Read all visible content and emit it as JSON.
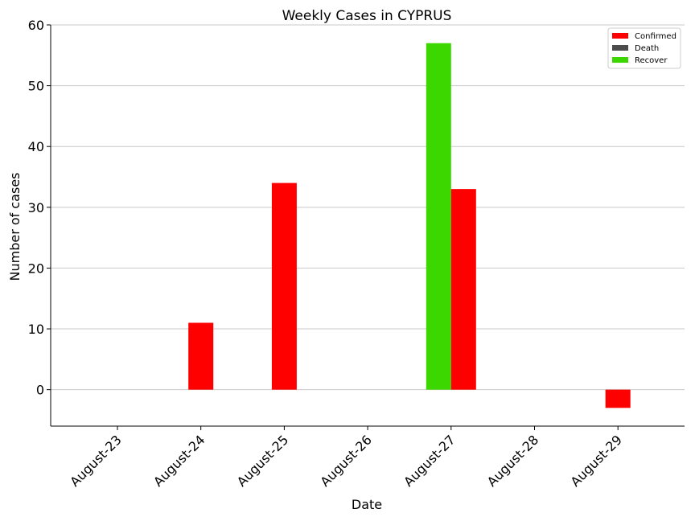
{
  "chart_data": {
    "type": "bar",
    "title": "Weekly Cases in CYPRUS",
    "xlabel": "Date",
    "ylabel": "Number of cases",
    "ylim": [
      -6,
      60
    ],
    "yticks": [
      0,
      10,
      20,
      30,
      40,
      50,
      60
    ],
    "categories": [
      "August-23",
      "August-24",
      "August-25",
      "August-26",
      "August-27",
      "August-28",
      "August-29"
    ],
    "series": [
      {
        "name": "Confirmed",
        "color": "#ff0000",
        "values": [
          0,
          11,
          34,
          0,
          33,
          0,
          -3
        ]
      },
      {
        "name": "Death",
        "color": "#4d4d4d",
        "values": [
          0,
          0,
          0,
          0,
          0,
          0,
          0
        ]
      },
      {
        "name": "Recover",
        "color": "#3cd600",
        "values": [
          0,
          0,
          0,
          0,
          57,
          0,
          0
        ]
      }
    ],
    "grid": "horizontal",
    "legend_position": "top-right"
  }
}
